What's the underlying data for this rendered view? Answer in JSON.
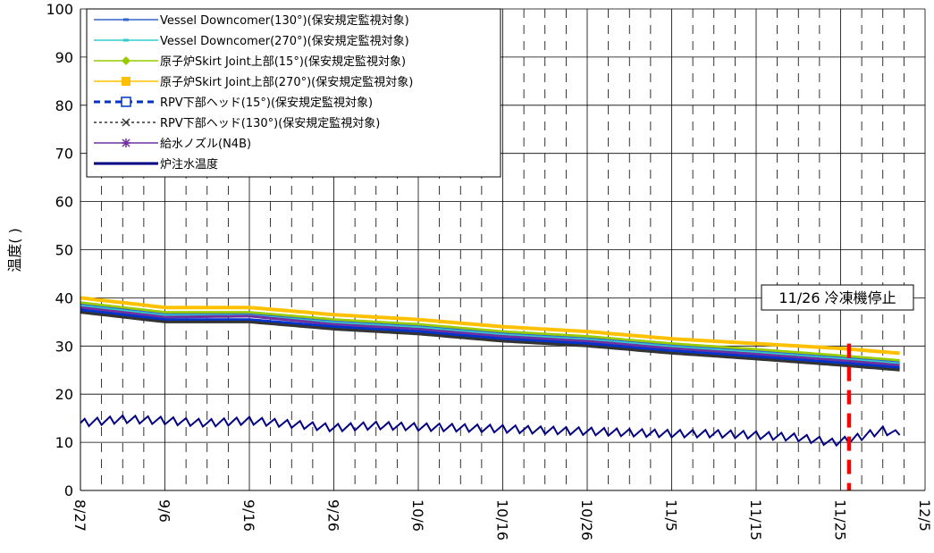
{
  "chart_data": {
    "type": "line",
    "title": "",
    "xlabel": "",
    "ylabel": "温度( )",
    "ylim": [
      0,
      100
    ],
    "yticks": [
      0,
      10,
      20,
      30,
      40,
      50,
      60,
      70,
      80,
      90,
      100
    ],
    "xlim": [
      "2011-08-27",
      "2011-12-05"
    ],
    "xticks": [
      "8/27",
      "9/6",
      "9/16",
      "9/26",
      "10/6",
      "10/16",
      "10/26",
      "11/5",
      "11/15",
      "11/25",
      "12/5"
    ],
    "grid": true,
    "legend_position": "top-left",
    "series": [
      {
        "name": "Vessel Downcomer(130°)(保安規定監視対象)",
        "color": "#3366cc",
        "marker": "dash",
        "values": [
          {
            "x": "2011-08-27",
            "y": 38.5
          },
          {
            "x": "2011-09-06",
            "y": 36.5
          },
          {
            "x": "2011-09-16",
            "y": 36.5
          },
          {
            "x": "2011-09-26",
            "y": 35.0
          },
          {
            "x": "2011-10-06",
            "y": 34.0
          },
          {
            "x": "2011-10-16",
            "y": 32.5
          },
          {
            "x": "2011-10-26",
            "y": 31.5
          },
          {
            "x": "2011-11-05",
            "y": 30.0
          },
          {
            "x": "2011-11-15",
            "y": 28.8
          },
          {
            "x": "2011-11-25",
            "y": 27.5
          },
          {
            "x": "2011-12-02",
            "y": 26.5
          }
        ]
      },
      {
        "name": "Vessel Downcomer(270°)(保安規定監視対象)",
        "color": "#33cccc",
        "marker": "dash",
        "values": [
          {
            "x": "2011-08-27",
            "y": 38.3
          },
          {
            "x": "2011-09-06",
            "y": 36.3
          },
          {
            "x": "2011-09-16",
            "y": 36.3
          },
          {
            "x": "2011-09-26",
            "y": 34.8
          },
          {
            "x": "2011-10-06",
            "y": 33.8
          },
          {
            "x": "2011-10-16",
            "y": 32.3
          },
          {
            "x": "2011-10-26",
            "y": 31.3
          },
          {
            "x": "2011-11-05",
            "y": 29.8
          },
          {
            "x": "2011-11-15",
            "y": 28.6
          },
          {
            "x": "2011-11-25",
            "y": 27.3
          },
          {
            "x": "2011-12-02",
            "y": 26.3
          }
        ]
      },
      {
        "name": "原子炉Skirt Joint上部(15°)(保安規定監視対象)",
        "color": "#99cc00",
        "marker": "diamond",
        "values": [
          {
            "x": "2011-08-27",
            "y": 39.0
          },
          {
            "x": "2011-09-06",
            "y": 37.0
          },
          {
            "x": "2011-09-16",
            "y": 37.0
          },
          {
            "x": "2011-09-26",
            "y": 35.5
          },
          {
            "x": "2011-10-06",
            "y": 34.5
          },
          {
            "x": "2011-10-16",
            "y": 33.0
          },
          {
            "x": "2011-10-26",
            "y": 32.0
          },
          {
            "x": "2011-11-05",
            "y": 30.5
          },
          {
            "x": "2011-11-15",
            "y": 29.3
          },
          {
            "x": "2011-11-25",
            "y": 28.0
          },
          {
            "x": "2011-12-02",
            "y": 27.0
          }
        ]
      },
      {
        "name": "原子炉Skirt Joint上部(270°)(保安規定監視対象)",
        "color": "#ffc000",
        "marker": "square",
        "values": [
          {
            "x": "2011-08-27",
            "y": 40.0
          },
          {
            "x": "2011-09-06",
            "y": 38.0
          },
          {
            "x": "2011-09-16",
            "y": 38.0
          },
          {
            "x": "2011-09-26",
            "y": 36.5
          },
          {
            "x": "2011-10-06",
            "y": 35.5
          },
          {
            "x": "2011-10-16",
            "y": 34.0
          },
          {
            "x": "2011-10-26",
            "y": 33.0
          },
          {
            "x": "2011-11-05",
            "y": 31.5
          },
          {
            "x": "2011-11-15",
            "y": 30.5
          },
          {
            "x": "2011-11-25",
            "y": 29.5
          },
          {
            "x": "2011-12-02",
            "y": 28.5
          }
        ]
      },
      {
        "name": "RPV下部ヘッド(15°)(保安規定監視対象)",
        "color": "#0033cc",
        "marker": "open-square",
        "values": [
          {
            "x": "2011-08-27",
            "y": 37.5
          },
          {
            "x": "2011-09-06",
            "y": 35.5
          },
          {
            "x": "2011-09-16",
            "y": 35.5
          },
          {
            "x": "2011-09-26",
            "y": 34.0
          },
          {
            "x": "2011-10-06",
            "y": 33.0
          },
          {
            "x": "2011-10-16",
            "y": 31.5
          },
          {
            "x": "2011-10-26",
            "y": 30.5
          },
          {
            "x": "2011-11-05",
            "y": 29.0
          },
          {
            "x": "2011-11-15",
            "y": 27.8
          },
          {
            "x": "2011-11-25",
            "y": 26.5
          },
          {
            "x": "2011-12-02",
            "y": 25.5
          }
        ]
      },
      {
        "name": "RPV下部ヘッド(130°)(保安規定監視対象)",
        "color": "#333333",
        "marker": "x",
        "values": [
          {
            "x": "2011-08-27",
            "y": 37.0
          },
          {
            "x": "2011-09-06",
            "y": 35.0
          },
          {
            "x": "2011-09-16",
            "y": 35.0
          },
          {
            "x": "2011-09-26",
            "y": 33.5
          },
          {
            "x": "2011-10-06",
            "y": 32.5
          },
          {
            "x": "2011-10-16",
            "y": 31.0
          },
          {
            "x": "2011-10-26",
            "y": 30.0
          },
          {
            "x": "2011-11-05",
            "y": 28.5
          },
          {
            "x": "2011-11-15",
            "y": 27.3
          },
          {
            "x": "2011-11-25",
            "y": 26.0
          },
          {
            "x": "2011-12-02",
            "y": 25.0
          }
        ]
      },
      {
        "name": "給水ノズル(N4B)",
        "color": "#7030a0",
        "marker": "star",
        "values": [
          {
            "x": "2011-08-27",
            "y": 38.0
          },
          {
            "x": "2011-09-06",
            "y": 36.0
          },
          {
            "x": "2011-09-16",
            "y": 36.2
          },
          {
            "x": "2011-09-26",
            "y": 34.5
          },
          {
            "x": "2011-10-06",
            "y": 33.5
          },
          {
            "x": "2011-10-16",
            "y": 32.0
          },
          {
            "x": "2011-10-26",
            "y": 31.0
          },
          {
            "x": "2011-11-05",
            "y": 29.5
          },
          {
            "x": "2011-11-15",
            "y": 28.3
          },
          {
            "x": "2011-11-25",
            "y": 27.0
          },
          {
            "x": "2011-12-02",
            "y": 26.0
          }
        ]
      },
      {
        "name": "炉注水温度",
        "color": "#000080",
        "marker": "none",
        "values": [
          {
            "x": "2011-08-27",
            "y": 14.0
          },
          {
            "x": "2011-09-01",
            "y": 14.8
          },
          {
            "x": "2011-09-06",
            "y": 14.5
          },
          {
            "x": "2011-09-11",
            "y": 14.0
          },
          {
            "x": "2011-09-16",
            "y": 14.5
          },
          {
            "x": "2011-09-21",
            "y": 13.8
          },
          {
            "x": "2011-09-26",
            "y": 13.0
          },
          {
            "x": "2011-10-01",
            "y": 13.5
          },
          {
            "x": "2011-10-06",
            "y": 13.2
          },
          {
            "x": "2011-10-11",
            "y": 13.0
          },
          {
            "x": "2011-10-16",
            "y": 12.8
          },
          {
            "x": "2011-10-21",
            "y": 12.5
          },
          {
            "x": "2011-10-26",
            "y": 12.3
          },
          {
            "x": "2011-10-31",
            "y": 12.0
          },
          {
            "x": "2011-11-05",
            "y": 11.8
          },
          {
            "x": "2011-11-10",
            "y": 11.8
          },
          {
            "x": "2011-11-15",
            "y": 11.5
          },
          {
            "x": "2011-11-20",
            "y": 11.0
          },
          {
            "x": "2011-11-24",
            "y": 10.0
          },
          {
            "x": "2011-11-26",
            "y": 10.5
          },
          {
            "x": "2011-11-30",
            "y": 12.5
          },
          {
            "x": "2011-12-02",
            "y": 11.5
          }
        ]
      }
    ],
    "annotations": [
      {
        "label": "11/26 冷凍機停止",
        "x": "2011-11-26",
        "color": "#ff0000",
        "style": "dashed-vertical-line"
      }
    ]
  }
}
